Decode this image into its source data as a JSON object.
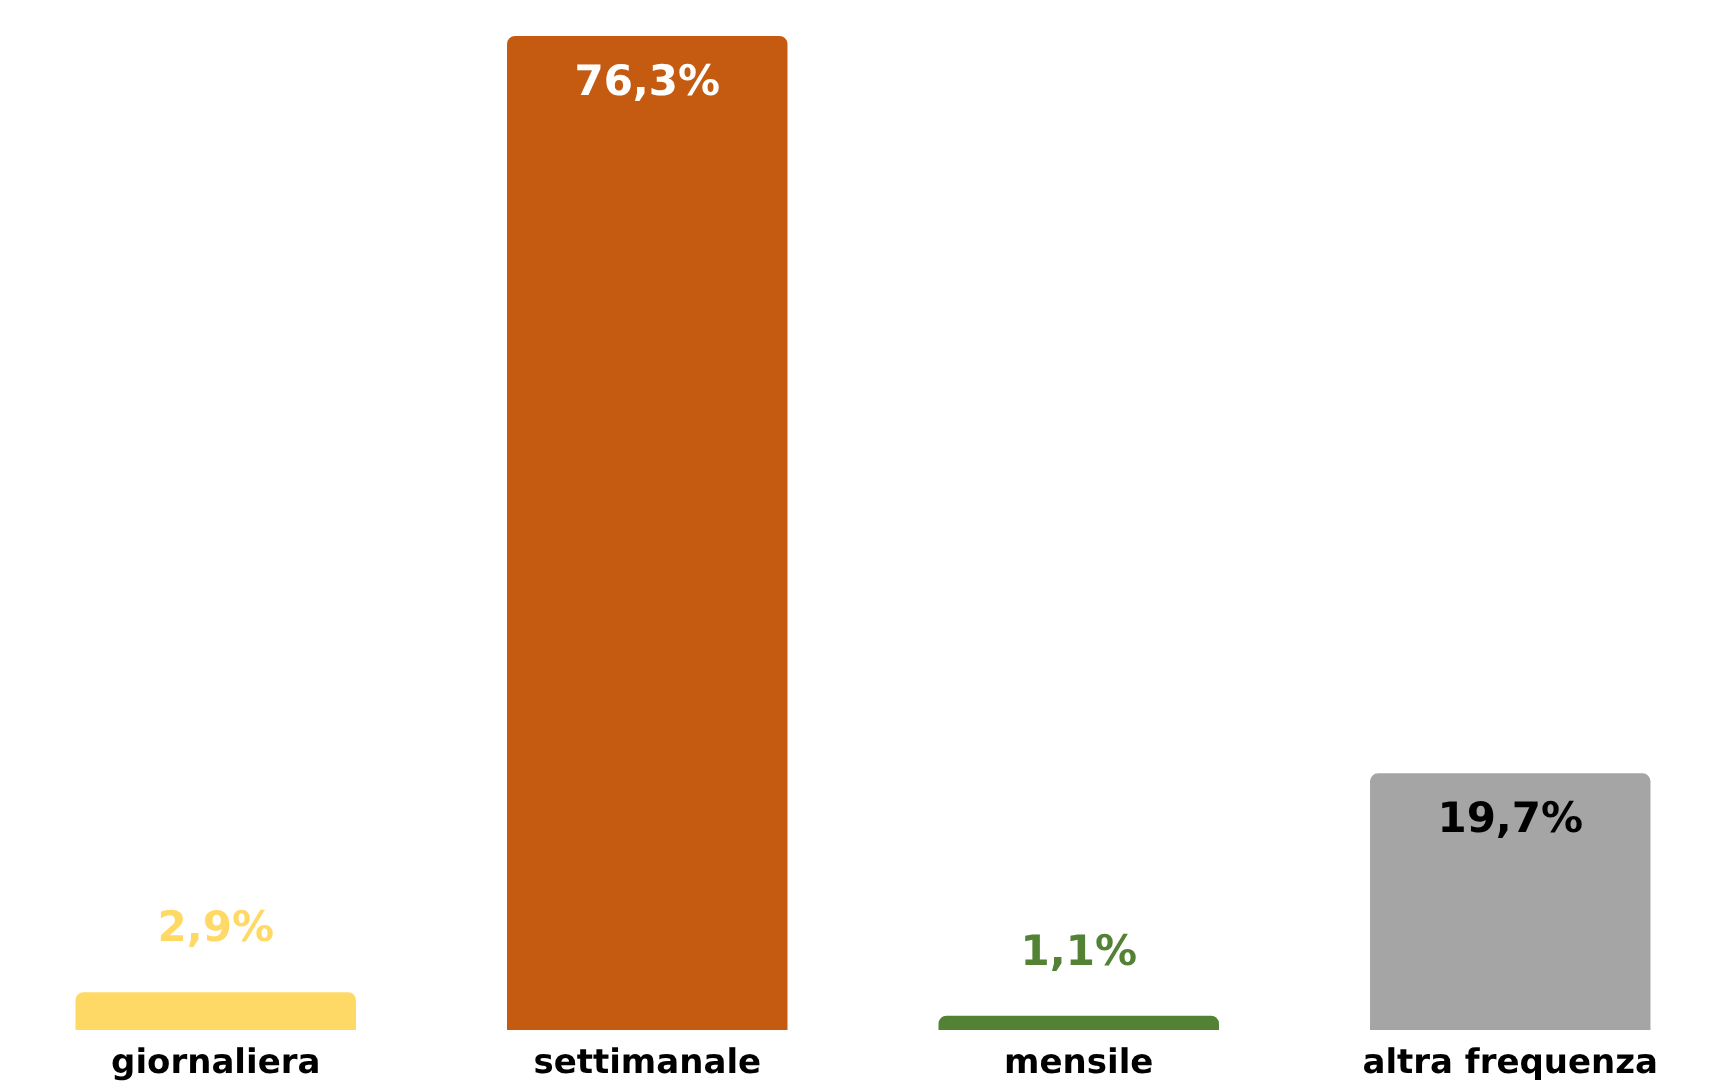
{
  "chart_data": {
    "type": "bar",
    "categories": [
      "giornaliera",
      "settimanale",
      "mensile",
      "altra frequenza"
    ],
    "values": [
      2.9,
      76.3,
      1.1,
      19.7
    ],
    "colors": [
      "#ffd966",
      "#c55a11",
      "#548235",
      "#a5a5a5"
    ],
    "value_labels": [
      "2,9%",
      "76,3%",
      "1,1%",
      "19,7%"
    ]
  }
}
